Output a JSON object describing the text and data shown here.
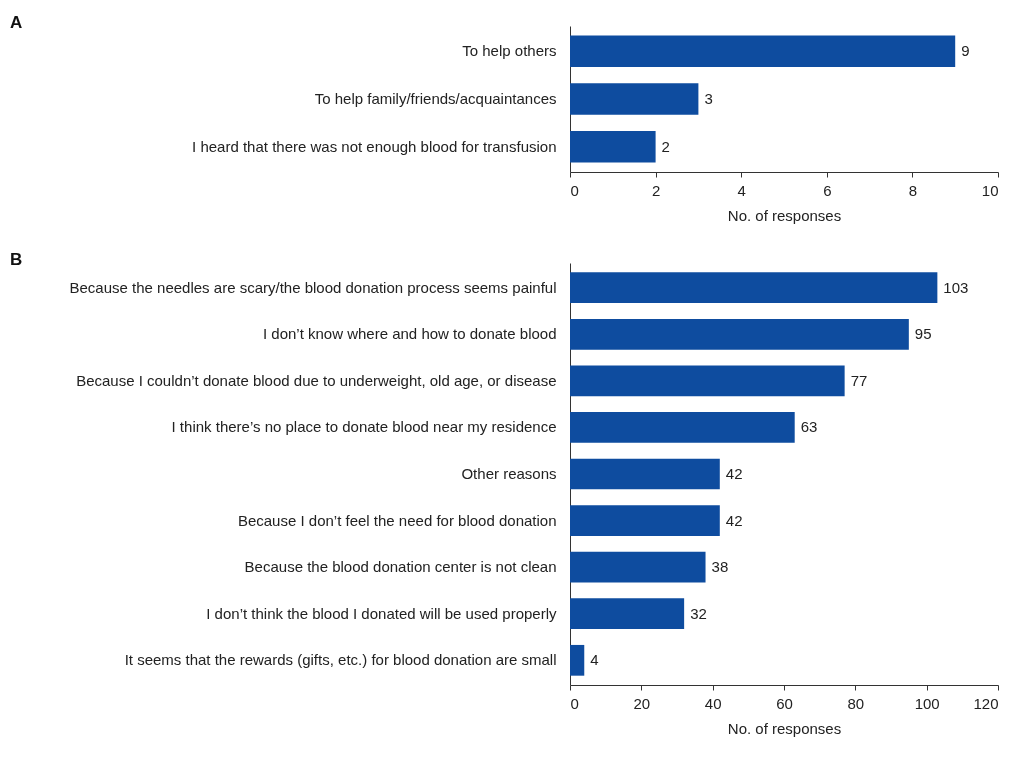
{
  "chart_data": [
    {
      "type": "bar",
      "annotations": [
        "A"
      ],
      "orientation": "horizontal",
      "categories": [
        "To help others",
        "To help family/friends/acquaintances",
        "I heard that there was not enough blood for transfusion"
      ],
      "values": [
        9,
        3,
        2
      ],
      "color": "#0e4c9f",
      "xlim": [
        0,
        10
      ],
      "xticks": [
        0,
        2,
        4,
        6,
        8,
        10
      ],
      "xlabel": "No. of responses",
      "data_labels": true,
      "grid": false
    },
    {
      "type": "bar",
      "annotations": [
        "B"
      ],
      "orientation": "horizontal",
      "categories": [
        "Because the needles are scary/the blood donation process seems painful",
        "I don’t know where and how to donate blood",
        "Because I couldn’t donate blood due to underweight, old age, or disease",
        "I think there’s no place to donate blood near my residence",
        "Other reasons",
        "Because I don’t feel the need for blood donation",
        "Because the blood donation center is not clean",
        "I don’t think the blood I donated will be used properly",
        "It seems that the rewards (gifts, etc.) for blood donation are small"
      ],
      "values": [
        103,
        95,
        77,
        63,
        42,
        42,
        38,
        32,
        4
      ],
      "color": "#0e4c9f",
      "xlim": [
        0,
        120
      ],
      "xticks": [
        0,
        20,
        40,
        60,
        80,
        100,
        120
      ],
      "xlabel": "No. of responses",
      "data_labels": true,
      "grid": false
    }
  ]
}
